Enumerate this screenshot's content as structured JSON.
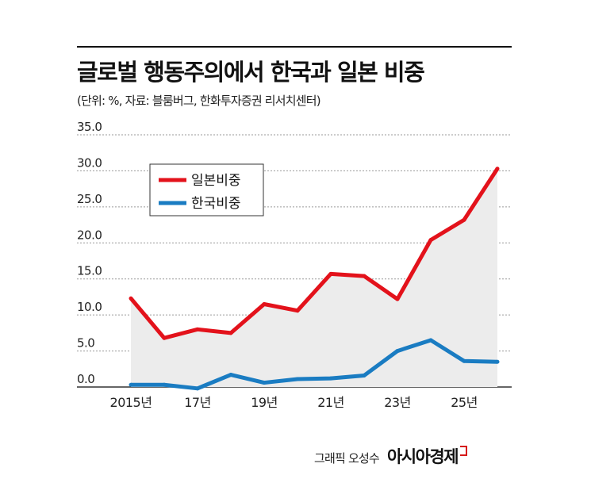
{
  "header": {
    "title": "글로벌 행동주의에서 한국과 일본 비중",
    "subtitle": "(단위: %, 자료: 블룸버그, 한화투자증권 리서치센터)"
  },
  "credit": {
    "author": "그래픽 오성수",
    "brand": "아시아경제"
  },
  "colors": {
    "japan": "#e3121b",
    "korea": "#1a7cc2",
    "area": "#ececec",
    "grid": "#9a9a9a"
  },
  "chart_data": {
    "type": "line",
    "title": "글로벌 행동주의에서 한국과 일본 비중",
    "ylim": [
      0,
      35
    ],
    "yticks": [
      "0.0",
      "5.0",
      "10.0",
      "15.0",
      "20.0",
      "25.0",
      "30.0",
      "35.0"
    ],
    "x": [
      2015,
      2016,
      2017,
      2018,
      2019,
      2020,
      2021,
      2022,
      2023,
      2024,
      2025,
      2026
    ],
    "xtick_labels": [
      {
        "x": 2015,
        "label": "2015년"
      },
      {
        "x": 2017,
        "label": "17년"
      },
      {
        "x": 2019,
        "label": "19년"
      },
      {
        "x": 2021,
        "label": "21년"
      },
      {
        "x": 2023,
        "label": "23년"
      },
      {
        "x": 2025,
        "label": "25년"
      }
    ],
    "legend_position": "top-left",
    "series": [
      {
        "name": "일본비중",
        "color": "#e3121b",
        "values": [
          12.3,
          6.8,
          8.0,
          7.5,
          11.5,
          10.6,
          15.7,
          15.4,
          12.2,
          20.4,
          23.2,
          30.3
        ]
      },
      {
        "name": "한국비중",
        "color": "#1a7cc2",
        "values": [
          0.3,
          0.3,
          -0.2,
          1.7,
          0.6,
          1.1,
          1.2,
          1.6,
          5.0,
          6.5,
          3.6,
          3.5
        ]
      }
    ]
  }
}
